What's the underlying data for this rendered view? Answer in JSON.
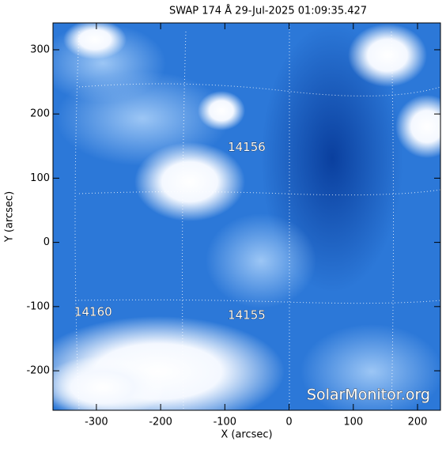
{
  "chart_data": {
    "type": "image",
    "title": "SWAP 174 Å 29-Jul-2025 01:09:35.427",
    "x_label": "X (arcsec)",
    "y_label": "Y (arcsec)",
    "xlim": [
      -367.6,
      235.7
    ],
    "ylim": [
      -261.5,
      341.8
    ],
    "xticks": [
      -300,
      -200,
      -100,
      0,
      100,
      200
    ],
    "yticks": [
      -200,
      -100,
      0,
      100,
      200,
      300
    ],
    "annotations": [
      {
        "text": "14156",
        "x": -66,
        "y": 148
      },
      {
        "text": "14160",
        "x": -305,
        "y": -109
      },
      {
        "text": "14155",
        "x": -66,
        "y": -114
      }
    ],
    "watermark": "SolarMonitor.org"
  }
}
